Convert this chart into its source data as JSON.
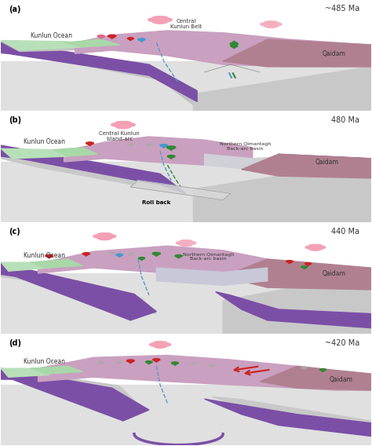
{
  "bg_color": "#ffffff",
  "panel_labels": [
    "(a)",
    "(b)",
    "(c)",
    "(d)"
  ],
  "time_labels": [
    "~485 Ma",
    "480 Ma",
    "440 Ma",
    "~420 Ma"
  ],
  "left_labels": [
    "Kunlun Ocean",
    "Kunlun Ocean",
    "Kunlun Ocean",
    "Kunlun Ocean"
  ],
  "right_labels": [
    "Qaidam",
    "Qaidam",
    "Qaidam",
    "Qaidam"
  ],
  "panel_a_labels": [
    "Central\nKunlun Belt"
  ],
  "panel_b_labels": [
    "Central Kunlun\nIsland-arc",
    "Northern Qimantagh\nBack-arc basin"
  ],
  "panel_c_labels": [
    "Northern Qimantagh\nBack-arc basin"
  ],
  "roll_back_label": "Roll back",
  "mantle_color": "#d8d8d8",
  "crust_color": "#b0b0b0",
  "slab_color": "#7b4fa6",
  "terrane_color": "#c9a0c0",
  "ocean_color": "#e8e8e8",
  "green_tint": "#c5dfc5",
  "qaidam_color": "#b08090"
}
